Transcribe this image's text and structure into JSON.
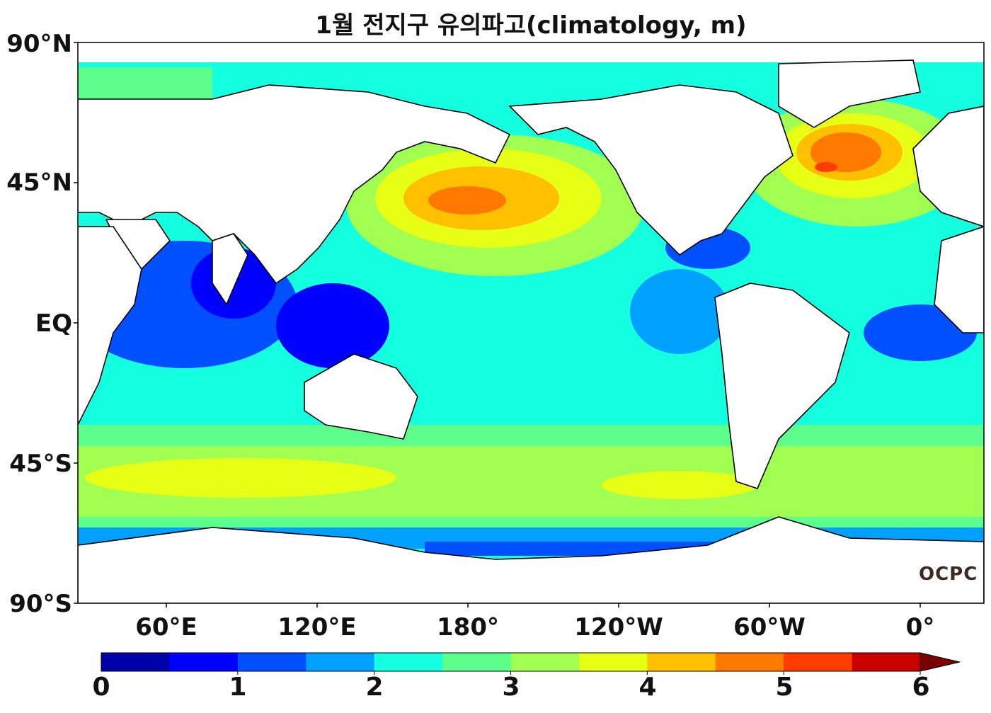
{
  "title": "1월 전지구 유의파고(climatology, m)",
  "watermark": "OCPC",
  "lat_labels": [
    "90°N",
    "45°N",
    "EQ",
    "45°S",
    "90°S"
  ],
  "lon_labels": [
    "60°E",
    "120°E",
    "180°",
    "120°W",
    "60°W",
    "0°"
  ],
  "colorbar": {
    "ticks": [
      "0",
      "1",
      "2",
      "3",
      "4",
      "5",
      "6"
    ],
    "colors": [
      "#0000a8",
      "#0000ff",
      "#0050ff",
      "#00a0ff",
      "#14ffe0",
      "#5cff8c",
      "#a0ff50",
      "#e6ff14",
      "#ffc000",
      "#ff7800",
      "#ff3c00",
      "#c80000",
      "#7a0000"
    ],
    "extend": "max"
  },
  "colors": {
    "land": "#ffffff",
    "coast": "#000000",
    "frame": "#000000"
  }
}
